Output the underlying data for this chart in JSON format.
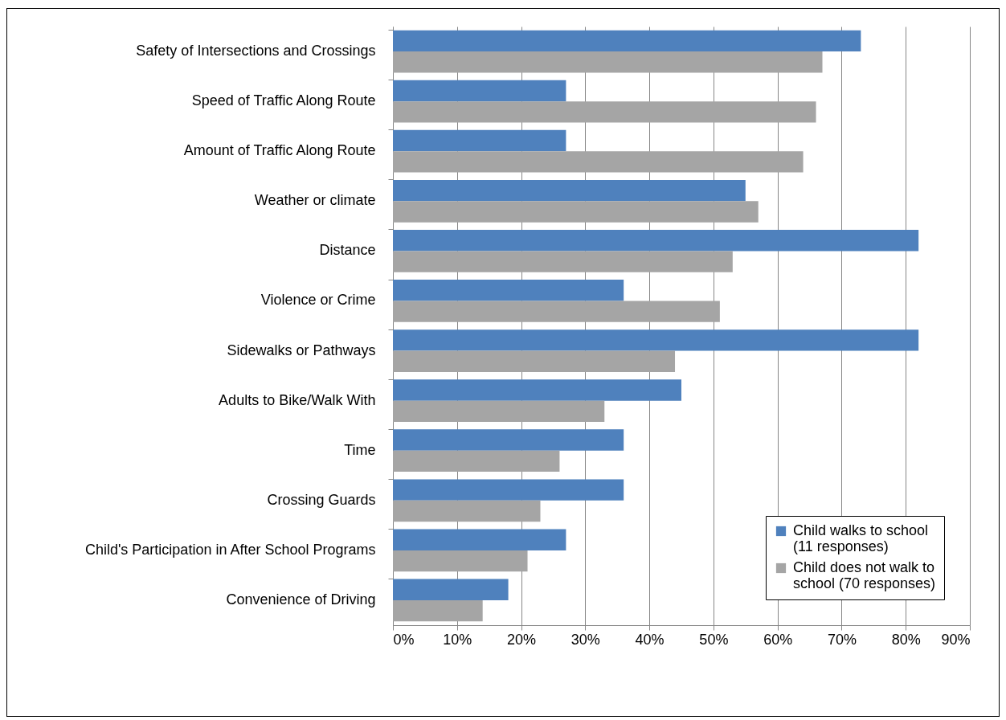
{
  "chart_data": {
    "type": "bar",
    "orientation": "horizontal",
    "categories": [
      "Safety of Intersections and Crossings",
      "Speed of Traffic Along Route",
      "Amount of Traffic Along Route",
      "Weather or climate",
      "Distance",
      "Violence or Crime",
      "Sidewalks or Pathways",
      "Adults to Bike/Walk With",
      "Time",
      "Crossing Guards",
      "Child's Participation in After School Programs",
      "Convenience of Driving"
    ],
    "series": [
      {
        "name": "Child walks to school (11 responses)",
        "color": "#4f81bd",
        "values": [
          73,
          27,
          27,
          55,
          82,
          36,
          82,
          45,
          36,
          36,
          27,
          18
        ]
      },
      {
        "name": "Child does not walk to school (70 responses)",
        "color": "#a5a5a5",
        "values": [
          67,
          66,
          64,
          57,
          53,
          51,
          44,
          33,
          26,
          23,
          21,
          14
        ]
      }
    ],
    "xlim": [
      0,
      90
    ],
    "xticks": [
      {
        "value": 0,
        "label": "0%"
      },
      {
        "value": 10,
        "label": "10%"
      },
      {
        "value": 20,
        "label": "20%"
      },
      {
        "value": 30,
        "label": "30%"
      },
      {
        "value": 40,
        "label": "40%"
      },
      {
        "value": 50,
        "label": "50%"
      },
      {
        "value": 60,
        "label": "60%"
      },
      {
        "value": 70,
        "label": "70%"
      },
      {
        "value": 80,
        "label": "80%"
      },
      {
        "value": 90,
        "label": "90%"
      }
    ],
    "grid": "x",
    "legend": "bottom right"
  }
}
